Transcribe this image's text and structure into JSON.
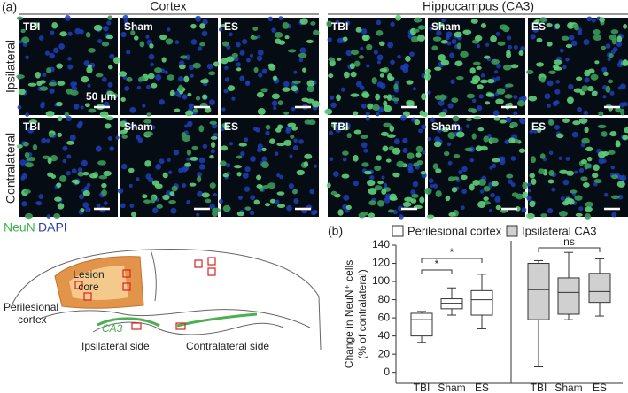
{
  "panel_a": {
    "label": "(a)",
    "columns": [
      "Cortex",
      "Hippocampus (CA3)"
    ],
    "rows": [
      "Ipsilateral",
      "Contralateral"
    ],
    "image_labels": [
      "TBI",
      "Sham",
      "ES"
    ],
    "scale_bar": "50 µm",
    "stain": [
      "NeuN",
      "DAPI"
    ]
  },
  "diagram": {
    "lesion_core": [
      "Lesion",
      "core"
    ],
    "perilesional_cortex": [
      "Perilesional",
      "cortex"
    ],
    "region": "CA3",
    "sides": [
      "Ipsilateral side",
      "Contralateral side"
    ]
  },
  "chart_data": {
    "type": "box",
    "label": "(b)",
    "ylabel": [
      "Change in NeuN⁺ cells",
      "(% of contralateral)"
    ],
    "ylim": [
      -12,
      140
    ],
    "yticks": [
      0,
      20,
      40,
      60,
      80,
      100,
      120,
      140
    ],
    "series": [
      {
        "name": "Perilesional cortex",
        "color": "#ffffff",
        "categories": [
          "TBI",
          "Sham",
          "ES"
        ],
        "min": [
          33,
          63,
          48
        ],
        "q1": [
          40,
          70,
          63
        ],
        "median": [
          58,
          76,
          80
        ],
        "q3": [
          65,
          81,
          90
        ],
        "max": [
          67,
          93,
          108
        ]
      },
      {
        "name": "Ipsilateral CA3",
        "color": "#d0d0d0",
        "categories": [
          "TBI",
          "Sham",
          "ES"
        ],
        "min": [
          6,
          58,
          62
        ],
        "q1": [
          58,
          64,
          77
        ],
        "median": [
          91,
          88,
          89
        ],
        "q3": [
          120,
          104,
          109
        ],
        "max": [
          123,
          132,
          125
        ]
      }
    ],
    "annotations": [
      "*",
      "*",
      "ns"
    ]
  }
}
